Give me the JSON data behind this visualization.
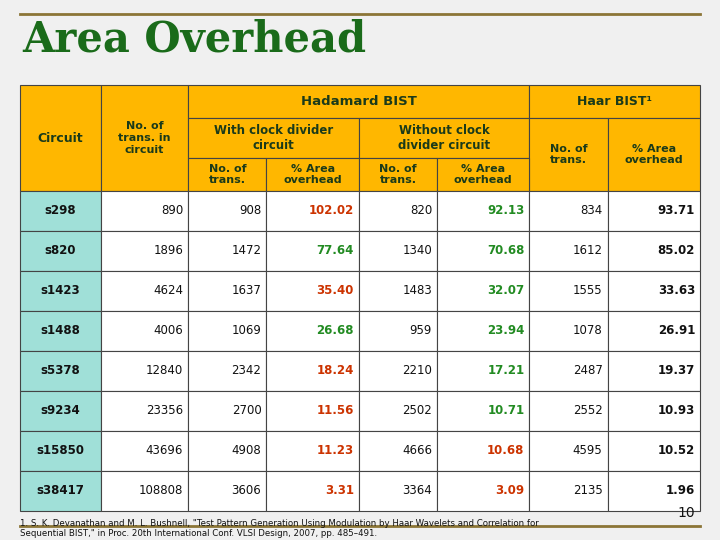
{
  "title": "Area Overhead",
  "title_color": "#1a6b1a",
  "background_color": "#f0f0f0",
  "slide_border_color": "#8B7536",
  "header_bg": "#FFB700",
  "header_text_color": "#1a3a1a",
  "circuit_data_bg": "#a0e0d8",
  "white_bg": "#ffffff",
  "col1_header": "Circuit",
  "col2_header": "No. of\ntrans. in\ncircuit",
  "hadamard_header": "Hadamard BIST",
  "haar_header": "Haar BIST¹",
  "with_clock_header": "With clock divider\ncircuit",
  "without_clock_header": "Without clock\ndivider circuit",
  "no_of_trans_label": "No. of\ntrans.",
  "pct_area_label": "% Area\noverhead",
  "rows": [
    {
      "circuit": "s298",
      "trans": "890",
      "wc_trans": "908",
      "wc_pct": "102.02",
      "woc_trans": "820",
      "woc_pct": "92.13",
      "haar_trans": "834",
      "haar_pct": "93.71"
    },
    {
      "circuit": "s820",
      "trans": "1896",
      "wc_trans": "1472",
      "wc_pct": "77.64",
      "woc_trans": "1340",
      "woc_pct": "70.68",
      "haar_trans": "1612",
      "haar_pct": "85.02"
    },
    {
      "circuit": "s1423",
      "trans": "4624",
      "wc_trans": "1637",
      "wc_pct": "35.40",
      "woc_trans": "1483",
      "woc_pct": "32.07",
      "haar_trans": "1555",
      "haar_pct": "33.63"
    },
    {
      "circuit": "s1488",
      "trans": "4006",
      "wc_trans": "1069",
      "wc_pct": "26.68",
      "woc_trans": "959",
      "woc_pct": "23.94",
      "haar_trans": "1078",
      "haar_pct": "26.91"
    },
    {
      "circuit": "s5378",
      "trans": "12840",
      "wc_trans": "2342",
      "wc_pct": "18.24",
      "woc_trans": "2210",
      "woc_pct": "17.21",
      "haar_trans": "2487",
      "haar_pct": "19.37"
    },
    {
      "circuit": "s9234",
      "trans": "23356",
      "wc_trans": "2700",
      "wc_pct": "11.56",
      "woc_trans": "2502",
      "woc_pct": "10.71",
      "haar_trans": "2552",
      "haar_pct": "10.93"
    },
    {
      "circuit": "s15850",
      "trans": "43696",
      "wc_trans": "4908",
      "wc_pct": "11.23",
      "woc_trans": "4666",
      "woc_pct": "10.68",
      "haar_trans": "4595",
      "haar_pct": "10.52"
    },
    {
      "circuit": "s38417",
      "trans": "108808",
      "wc_trans": "3606",
      "wc_pct": "3.31",
      "woc_trans": "3364",
      "woc_pct": "3.09",
      "haar_trans": "2135",
      "haar_pct": "1.96"
    }
  ],
  "wc_pct_colors": [
    "#cc3300",
    "#228B22",
    "#cc3300",
    "#228B22",
    "#cc3300",
    "#cc3300",
    "#cc3300",
    "#cc3300"
  ],
  "woc_pct_colors": [
    "#228B22",
    "#228B22",
    "#228B22",
    "#228B22",
    "#228B22",
    "#228B22",
    "#cc3300",
    "#cc3300"
  ],
  "footnote": "1. S. K. Devanathan and M. L. Bushnell, \"Test Pattern Generation Using Modulation by Haar Wavelets and Correlation for\nSequential BIST,\" in Proc. 20th International Conf. VLSI Design, 2007, pp. 485–491.",
  "page_number": "10"
}
